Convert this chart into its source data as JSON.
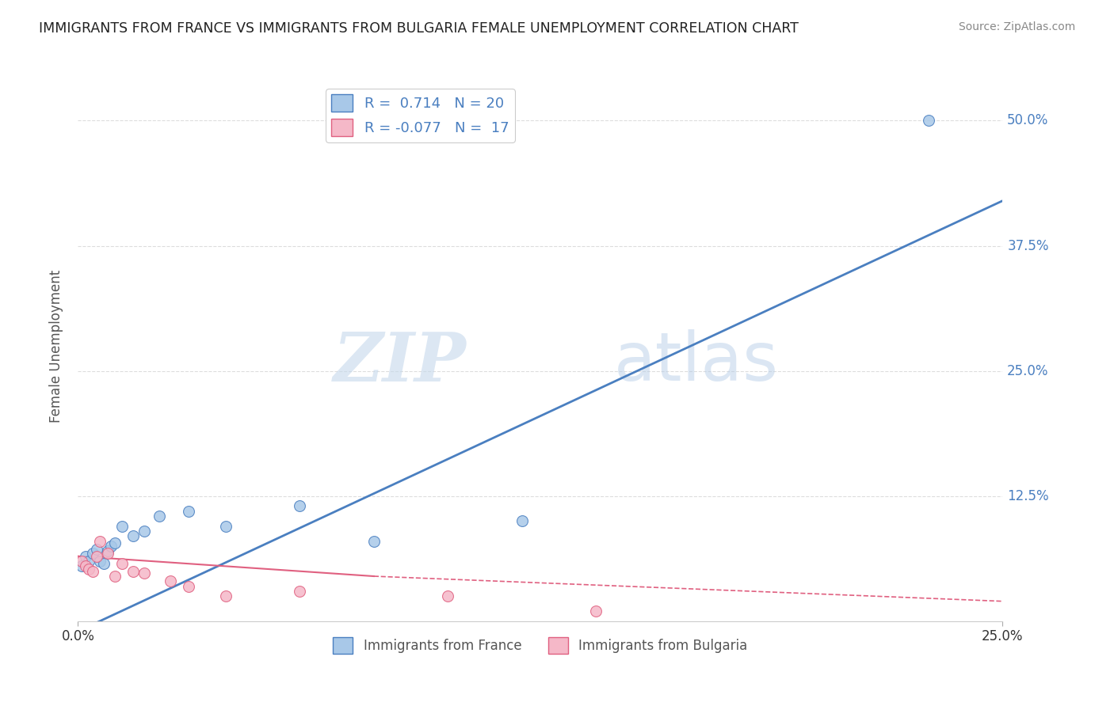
{
  "title": "IMMIGRANTS FROM FRANCE VS IMMIGRANTS FROM BULGARIA FEMALE UNEMPLOYMENT CORRELATION CHART",
  "source": "Source: ZipAtlas.com",
  "ylabel": "Female Unemployment",
  "watermark_zip": "ZIP",
  "watermark_atlas": "atlas",
  "xlim": [
    0.0,
    0.25
  ],
  "ylim": [
    0.0,
    0.55
  ],
  "xtick_labels": [
    "0.0%",
    "25.0%"
  ],
  "xtick_vals": [
    0.0,
    0.25
  ],
  "ytick_labels": [
    "12.5%",
    "25.0%",
    "37.5%",
    "50.0%"
  ],
  "ytick_vals": [
    0.125,
    0.25,
    0.375,
    0.5
  ],
  "france_color": "#a8c8e8",
  "bulgaria_color": "#f5b8c8",
  "france_line_color": "#4a7fc0",
  "bulgaria_line_color": "#e06080",
  "france_R": 0.714,
  "france_N": 20,
  "bulgaria_R": -0.077,
  "bulgaria_N": 17,
  "france_scatter_x": [
    0.001,
    0.002,
    0.003,
    0.004,
    0.005,
    0.006,
    0.007,
    0.008,
    0.009,
    0.01,
    0.012,
    0.015,
    0.018,
    0.022,
    0.03,
    0.04,
    0.06,
    0.08,
    0.12,
    0.23
  ],
  "france_scatter_y": [
    0.055,
    0.065,
    0.06,
    0.068,
    0.072,
    0.06,
    0.058,
    0.07,
    0.075,
    0.078,
    0.095,
    0.085,
    0.09,
    0.105,
    0.11,
    0.095,
    0.115,
    0.08,
    0.1,
    0.5
  ],
  "bulgaria_scatter_x": [
    0.001,
    0.002,
    0.003,
    0.004,
    0.005,
    0.006,
    0.008,
    0.01,
    0.012,
    0.015,
    0.018,
    0.025,
    0.03,
    0.04,
    0.06,
    0.1,
    0.14
  ],
  "bulgaria_scatter_y": [
    0.06,
    0.055,
    0.052,
    0.05,
    0.065,
    0.08,
    0.068,
    0.045,
    0.058,
    0.05,
    0.048,
    0.04,
    0.035,
    0.025,
    0.03,
    0.025,
    0.01
  ],
  "france_trendline": [
    [
      0.0,
      -0.01
    ],
    [
      0.25,
      0.42
    ]
  ],
  "bulgaria_trendline_solid": [
    [
      0.0,
      0.065
    ],
    [
      0.08,
      0.045
    ]
  ],
  "bulgaria_trendline_dash": [
    [
      0.08,
      0.045
    ],
    [
      0.25,
      0.02
    ]
  ],
  "background_color": "#ffffff",
  "grid_color": "#dddddd"
}
